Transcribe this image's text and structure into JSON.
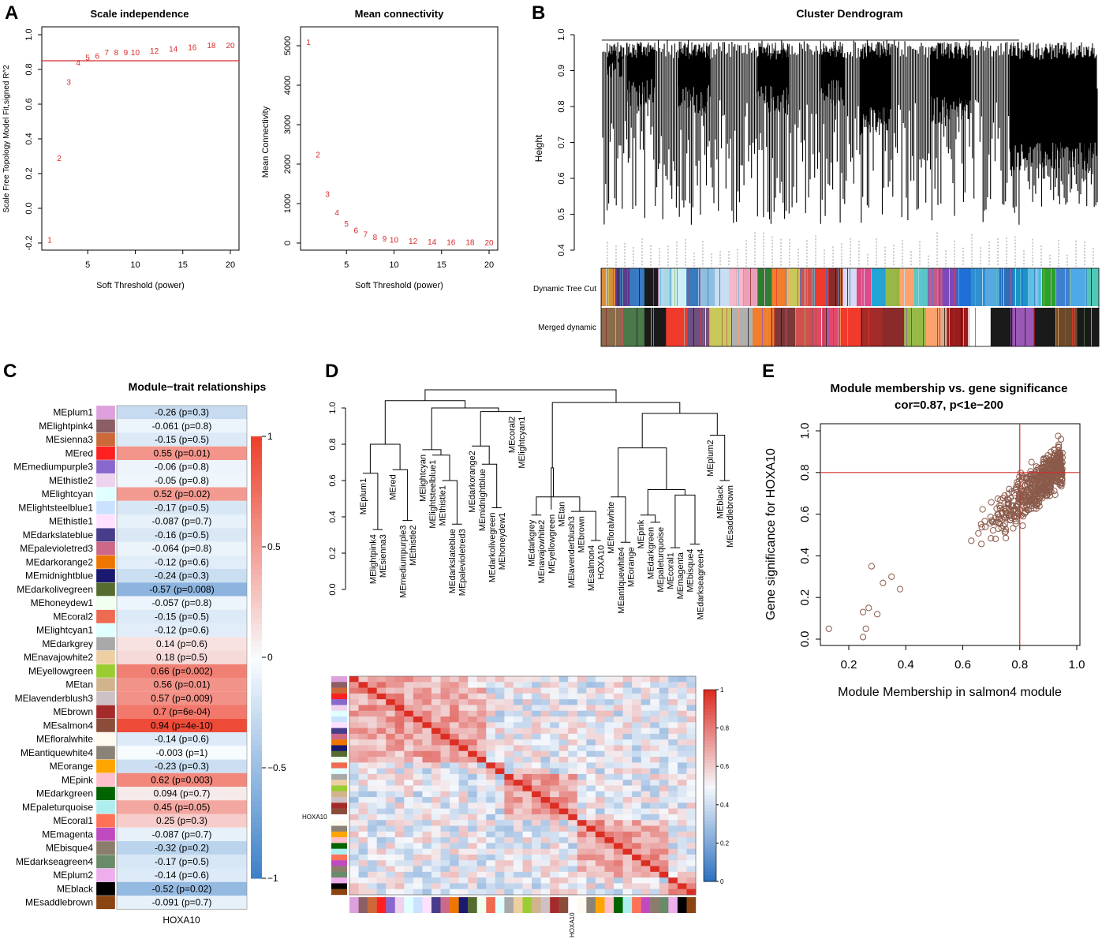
{
  "panels": {
    "a": "A",
    "b": "B",
    "c": "C",
    "d": "D",
    "e": "E"
  },
  "chart_data": [
    {
      "id": "scale-independence",
      "type": "scatter",
      "title": "Scale independence",
      "xlabel": "Soft Threshold (power)",
      "ylabel": "Scale Free Topology Model Fit,signed R^2",
      "xlim": [
        1,
        20
      ],
      "ylim": [
        -0.2,
        1.0
      ],
      "xticks": [
        5,
        10,
        15,
        20
      ],
      "yticks": [
        -0.2,
        0.0,
        0.2,
        0.4,
        0.6,
        0.8,
        1.0
      ],
      "hline": 0.85,
      "x": [
        1,
        2,
        3,
        4,
        5,
        6,
        7,
        8,
        9,
        10,
        12,
        14,
        16,
        18,
        20
      ],
      "values": [
        -0.18,
        0.29,
        0.73,
        0.84,
        0.87,
        0.88,
        0.9,
        0.9,
        0.9,
        0.9,
        0.91,
        0.92,
        0.93,
        0.94,
        0.94
      ],
      "labels": [
        "1",
        "2",
        "3",
        "4",
        "5",
        "6",
        "7",
        "8",
        "9",
        "10",
        "12",
        "14",
        "16",
        "18",
        "20"
      ]
    },
    {
      "id": "mean-connectivity",
      "type": "scatter",
      "title": "Mean connectivity",
      "xlabel": "Soft Threshold (power)",
      "ylabel": "Mean Connectivity",
      "xlim": [
        1,
        20
      ],
      "ylim": [
        0,
        5200
      ],
      "xticks": [
        5,
        10,
        15,
        20
      ],
      "yticks": [
        0,
        1000,
        2000,
        3000,
        4000,
        5000
      ],
      "x": [
        1,
        2,
        3,
        4,
        5,
        6,
        7,
        8,
        9,
        10,
        12,
        14,
        16,
        18,
        20
      ],
      "values": [
        5100,
        2250,
        1250,
        780,
        500,
        330,
        230,
        160,
        120,
        95,
        65,
        45,
        35,
        28,
        22
      ],
      "labels": [
        "1",
        "2",
        "3",
        "4",
        "5",
        "6",
        "7",
        "8",
        "9",
        "10",
        "12",
        "14",
        "16",
        "18",
        "20"
      ]
    },
    {
      "id": "cluster-dendrogram",
      "type": "dendrogram",
      "title": "Cluster Dendrogram",
      "ylabel": "Height",
      "ylim": [
        0.4,
        1.0
      ],
      "yticks": [
        0.4,
        0.5,
        0.6,
        0.7,
        0.8,
        0.9,
        1.0
      ],
      "row_labels": [
        "Dynamic Tree Cut",
        "Merged dynamic"
      ],
      "dynamic_tree_cut_colors": [
        "#d98c3f",
        "#5b3b8c",
        "#3a79c0",
        "#1a1a1a",
        "#a9d7e5",
        "#ccf0f5",
        "#3a79c0",
        "#8fbfe0",
        "#c7dff2",
        "#f5b8c8",
        "#e8a0b8",
        "#2e7d32",
        "#f07e2c",
        "#c9c95a",
        "#d05050",
        "#ef3a2c",
        "#8a2a2a",
        "#d8d8ff",
        "#e04a86",
        "#1fa6d6",
        "#98b948",
        "#ffa36e",
        "#5ac8c8",
        "#c45a8c",
        "#7a4ab8",
        "#1f6fd6",
        "#2f8fd0",
        "#55a8e0",
        "#2d6fb7",
        "#1f90c8",
        "#5fbfe0",
        "#2ca02c",
        "#3f7fd0",
        "#4fa8e8",
        "#52c6b8"
      ],
      "merged_dynamic_colors": [
        "#8c6b4a",
        "#4a7a4a",
        "#1a1a1a",
        "#ef3a2c",
        "#6e5080",
        "#c9c95a",
        "#b0b0b0",
        "#f07e2c",
        "#7a3a3a",
        "#d05050",
        "#e04a6a",
        "#ef3a2c",
        "#a52a2a",
        "#8a2a2a",
        "#98b948",
        "#ffa36e",
        "#9b1c1c",
        "#ffffff",
        "#1a1a1a",
        "#9b59b6",
        "#1a1a1a",
        "#6b4a2a",
        "#1a1a1a"
      ]
    },
    {
      "id": "module-trait-relationships",
      "type": "heatmap",
      "title": "Module−trait relationships",
      "xlabel": "HOXA10",
      "colorbar_ticks": [
        1,
        0.5,
        0,
        -0.5,
        -1
      ],
      "colorbar_labels": [
        "1",
        "0.5",
        "0",
        "−0.5",
        "−1"
      ],
      "rows": [
        {
          "module": "MEplum1",
          "color": "#dda0dd",
          "r": -0.26,
          "label": "-0.26 (p=0.3)"
        },
        {
          "module": "MElightpink4",
          "color": "#8b5f65",
          "r": -0.061,
          "label": "-0.061 (p=0.8)"
        },
        {
          "module": "MEsienna3",
          "color": "#cd6839",
          "r": -0.15,
          "label": "-0.15 (p=0.5)"
        },
        {
          "module": "MEred",
          "color": "#ff2020",
          "r": 0.55,
          "label": "0.55 (p=0.01)"
        },
        {
          "module": "MEmediumpurple3",
          "color": "#8968cd",
          "r": -0.06,
          "label": "-0.06 (p=0.8)"
        },
        {
          "module": "MEthistle2",
          "color": "#eed2ee",
          "r": -0.05,
          "label": "-0.05 (p=0.8)"
        },
        {
          "module": "MElightcyan",
          "color": "#e0ffff",
          "r": 0.52,
          "label": "0.52 (p=0.02)"
        },
        {
          "module": "MElightsteelblue1",
          "color": "#cae1ff",
          "r": -0.17,
          "label": "-0.17 (p=0.5)"
        },
        {
          "module": "MEthistle1",
          "color": "#ffe1ff",
          "r": -0.087,
          "label": "-0.087 (p=0.7)"
        },
        {
          "module": "MEdarkslateblue",
          "color": "#483d8b",
          "r": -0.16,
          "label": "-0.16 (p=0.5)"
        },
        {
          "module": "MEpalevioletred3",
          "color": "#cd6889",
          "r": -0.064,
          "label": "-0.064 (p=0.8)"
        },
        {
          "module": "MEdarkorange2",
          "color": "#ee7600",
          "r": -0.12,
          "label": "-0.12 (p=0.6)"
        },
        {
          "module": "MEmidnightblue",
          "color": "#191970",
          "r": -0.24,
          "label": "-0.24 (p=0.3)"
        },
        {
          "module": "MEdarkolivegreen",
          "color": "#556b2f",
          "r": -0.57,
          "label": "-0.57 (p=0.008)"
        },
        {
          "module": "MEhoneydew1",
          "color": "#f0fff0",
          "r": -0.057,
          "label": "-0.057 (p=0.8)"
        },
        {
          "module": "MEcoral2",
          "color": "#ee6a50",
          "r": -0.15,
          "label": "-0.15 (p=0.5)"
        },
        {
          "module": "MElightcyan1",
          "color": "#e0ffff",
          "r": -0.12,
          "label": "-0.12 (p=0.6)"
        },
        {
          "module": "MEdarkgrey",
          "color": "#a9a9a9",
          "r": 0.14,
          "label": "0.14 (p=0.6)"
        },
        {
          "module": "MEnavajowhite2",
          "color": "#eecfa1",
          "r": 0.18,
          "label": "0.18 (p=0.5)"
        },
        {
          "module": "MEyellowgreen",
          "color": "#9acd32",
          "r": 0.66,
          "label": "0.66 (p=0.002)"
        },
        {
          "module": "MEtan",
          "color": "#d2b48c",
          "r": 0.56,
          "label": "0.56 (p=0.01)"
        },
        {
          "module": "MElavenderblush3",
          "color": "#cdc1c5",
          "r": 0.57,
          "label": "0.57 (p=0.009)"
        },
        {
          "module": "MEbrown",
          "color": "#a52a2a",
          "r": 0.7,
          "label": "0.7 (p=6e-04)"
        },
        {
          "module": "MEsalmon4",
          "color": "#8b4c39",
          "r": 0.94,
          "label": "0.94 (p=4e-10)"
        },
        {
          "module": "MEfloralwhite",
          "color": "#fffaf0",
          "r": -0.14,
          "label": "-0.14 (p=0.6)"
        },
        {
          "module": "MEantiquewhite4",
          "color": "#8b8378",
          "r": -0.003,
          "label": "-0.003 (p=1)"
        },
        {
          "module": "MEorange",
          "color": "#ffa500",
          "r": -0.23,
          "label": "-0.23 (p=0.3)"
        },
        {
          "module": "MEpink",
          "color": "#ffc0cb",
          "r": 0.62,
          "label": "0.62 (p=0.003)"
        },
        {
          "module": "MEdarkgreen",
          "color": "#006400",
          "r": 0.094,
          "label": "0.094 (p=0.7)"
        },
        {
          "module": "MEpaleturquoise",
          "color": "#afeeee",
          "r": 0.45,
          "label": "0.45 (p=0.05)"
        },
        {
          "module": "MEcoral1",
          "color": "#ff7256",
          "r": 0.25,
          "label": "0.25 (p=0.3)"
        },
        {
          "module": "MEmagenta",
          "color": "#c04ac0",
          "r": -0.087,
          "label": "-0.087 (p=0.7)"
        },
        {
          "module": "MEbisque4",
          "color": "#8b7d6b",
          "r": -0.32,
          "label": "-0.32 (p=0.2)"
        },
        {
          "module": "MEdarkseagreen4",
          "color": "#698b69",
          "r": -0.17,
          "label": "-0.17 (p=0.5)"
        },
        {
          "module": "MEplum2",
          "color": "#eeaeee",
          "r": -0.14,
          "label": "-0.14 (p=0.6)"
        },
        {
          "module": "MEblack",
          "color": "#000000",
          "r": -0.52,
          "label": "-0.52 (p=0.02)"
        },
        {
          "module": "MEsaddlebrown",
          "color": "#8b4513",
          "r": -0.091,
          "label": "-0.091 (p=0.7)"
        }
      ]
    },
    {
      "id": "eigengene-dendrogram",
      "type": "dendrogram",
      "ylim": [
        0.0,
        1.0
      ],
      "yticks": [
        0.0,
        0.2,
        0.4,
        0.6,
        0.8,
        1.0
      ],
      "leaves": [
        "MEplum1",
        "MElightpink4",
        "MEsienna3",
        "MEred",
        "MEmediumpurple3",
        "MEthistle2",
        "MElightcyan",
        "MElightsteelblue1",
        "MEthistle1",
        "MEdarkslateblue",
        "MEpalevioletred3",
        "MEdarkorange2",
        "MEmidnightblue",
        "MEdarkolivegreen",
        "MEhoneydew1",
        "MEcoral2",
        "MElightcyan1",
        "MEdarkgrey",
        "MEnavajowhite2",
        "MEyellowgreen",
        "MEtan",
        "MElavenderblush3",
        "MEbrown",
        "MEsalmon4",
        "HOXA10",
        "MEfloralwhite",
        "MEantiquewhite4",
        "MEorange",
        "MEpink",
        "MEdarkgreen",
        "MEpaleturquoise",
        "MEcoral1",
        "MEmagenta",
        "MEbisque4",
        "MEdarkseagreen4",
        "MEplum2",
        "MEblack",
        "MEsaddlebrown"
      ],
      "leaf_heights": [
        0.64,
        0.33,
        0.33,
        0.66,
        0.38,
        0.38,
        0.77,
        0.74,
        0.6,
        0.36,
        0.36,
        0.79,
        0.69,
        0.45,
        0.45,
        0.98,
        0.98,
        0.41,
        0.41,
        0.44,
        0.51,
        0.43,
        0.43,
        0.27,
        0.27,
        0.51,
        0.26,
        0.26,
        0.41,
        0.37,
        0.37,
        0.23,
        0.23,
        0.25,
        0.25,
        0.85,
        0.6,
        0.6
      ]
    },
    {
      "id": "eigengene-adjacency-heatmap",
      "type": "heatmap",
      "row_label": "HOXA10",
      "col_label": "HOXA10",
      "colorbar_ticks": [
        1,
        0.8,
        0.6,
        0.4,
        0.2,
        0
      ],
      "colorbar_labels": [
        "1",
        "0.8",
        "0.6",
        "0.4",
        "0.2",
        "0"
      ],
      "size": 38,
      "hoxa10_index": 24
    },
    {
      "id": "module-membership-scatter",
      "type": "scatter",
      "title": "Module membership vs. gene significance",
      "subtitle": "cor=0.87, p<1e−200",
      "xlabel": "Module Membership in salmon4 module",
      "ylabel": "Gene significance for HOXA10",
      "xlim": [
        0.1,
        1.0
      ],
      "ylim": [
        0.0,
        1.0
      ],
      "xticks": [
        0.2,
        0.4,
        0.6,
        0.8,
        1.0
      ],
      "yticks": [
        0.0,
        0.2,
        0.4,
        0.6,
        0.8,
        1.0
      ],
      "xtick_labels": [
        "0.2",
        "0.4",
        "0.6",
        "0.8",
        "1.0"
      ],
      "ytick_labels": [
        "0.0",
        "0.2",
        "0.4",
        "0.6",
        "0.8",
        "1.0"
      ],
      "vline": 0.8,
      "hline": 0.8,
      "n_points": 560,
      "outliers": [
        [
          0.13,
          0.05
        ],
        [
          0.25,
          0.01
        ],
        [
          0.26,
          0.05
        ],
        [
          0.25,
          0.13
        ],
        [
          0.27,
          0.15
        ],
        [
          0.28,
          0.35
        ],
        [
          0.32,
          0.27
        ],
        [
          0.35,
          0.3
        ],
        [
          0.38,
          0.24
        ],
        [
          0.3,
          0.12
        ]
      ]
    }
  ]
}
